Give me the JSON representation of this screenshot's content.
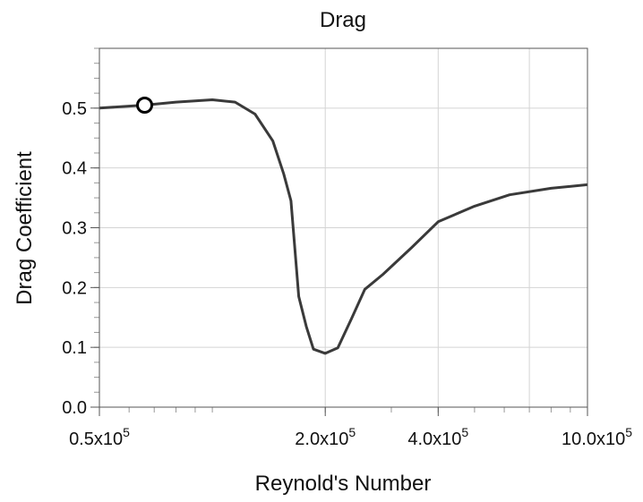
{
  "chart_data": {
    "type": "line",
    "title": "Drag",
    "xlabel": "Reynold's Number",
    "ylabel": "Drag Coefficient",
    "x_scale": "log",
    "xlim": [
      50000,
      1000000
    ],
    "ylim": [
      0,
      0.6
    ],
    "grid": true,
    "x_ticks": [
      {
        "value": 50000,
        "label": "0.5x10",
        "exp": "5"
      },
      {
        "value": 200000,
        "label": "2.0x10",
        "exp": "5"
      },
      {
        "value": 400000,
        "label": "4.0x10",
        "exp": "5"
      },
      {
        "value": 1000000,
        "label": "10.0x10",
        "exp": "5"
      }
    ],
    "y_ticks": [
      {
        "value": 0.0,
        "label": "0.0"
      },
      {
        "value": 0.1,
        "label": "0.1"
      },
      {
        "value": 0.2,
        "label": "0.2"
      },
      {
        "value": 0.3,
        "label": "0.3"
      },
      {
        "value": 0.4,
        "label": "0.4"
      },
      {
        "value": 0.5,
        "label": "0.5"
      }
    ],
    "series": [
      {
        "color": "#3a3a3a",
        "x": [
          50000,
          66000,
          80000,
          100000,
          115000,
          130000,
          145000,
          155000,
          162000,
          170000,
          178000,
          186000,
          200000,
          216000,
          235000,
          255000,
          285000,
          340000,
          400000,
          500000,
          620000,
          800000,
          1000000
        ],
        "y": [
          0.5,
          0.505,
          0.51,
          0.514,
          0.51,
          0.49,
          0.445,
          0.39,
          0.345,
          0.185,
          0.135,
          0.097,
          0.09,
          0.099,
          0.148,
          0.197,
          0.222,
          0.267,
          0.31,
          0.336,
          0.355,
          0.366,
          0.372
        ]
      }
    ],
    "highlight_point": {
      "x": 66000,
      "y": 0.505
    }
  }
}
